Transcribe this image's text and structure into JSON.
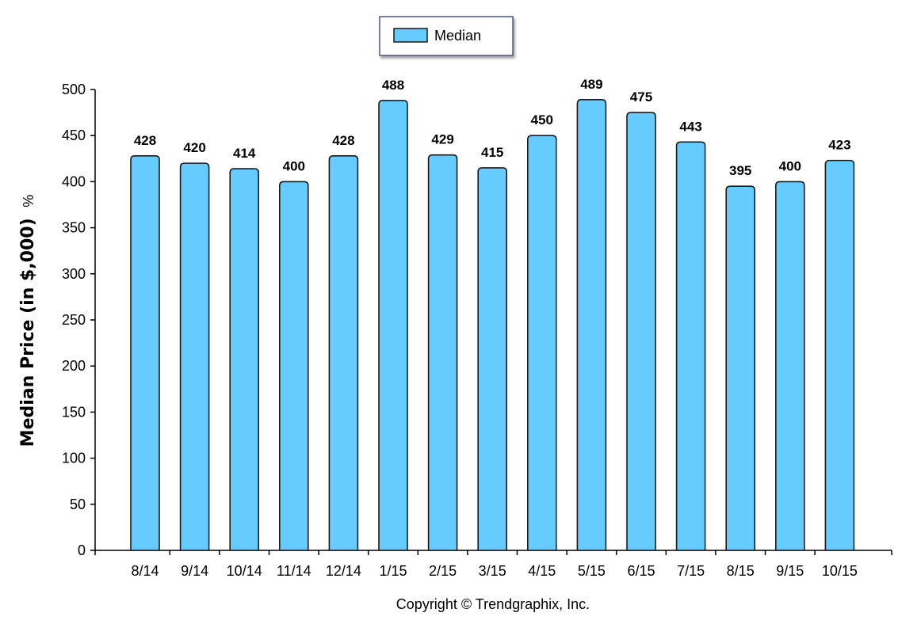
{
  "chart_data": {
    "type": "bar",
    "categories": [
      "8/14",
      "9/14",
      "10/14",
      "11/14",
      "12/14",
      "1/15",
      "2/15",
      "3/15",
      "4/15",
      "5/15",
      "6/15",
      "7/15",
      "8/15",
      "9/15",
      "10/15"
    ],
    "series": [
      {
        "name": "Median",
        "values": [
          428,
          420,
          414,
          400,
          428,
          488,
          429,
          415,
          450,
          489,
          475,
          443,
          395,
          400,
          423
        ]
      }
    ],
    "ylabel": "Median Price (in $,000)",
    "ylabel_unit": "%",
    "ylim": [
      0,
      500
    ],
    "yticks": [
      0,
      50,
      100,
      150,
      200,
      250,
      300,
      350,
      400,
      450,
      500
    ],
    "grid": false,
    "legend_position": "top-center",
    "bar_color": "#66ccff",
    "bar_stroke": "#1a1a1a"
  },
  "footer": {
    "copyright": "Copyright © Trendgraphix, Inc."
  }
}
